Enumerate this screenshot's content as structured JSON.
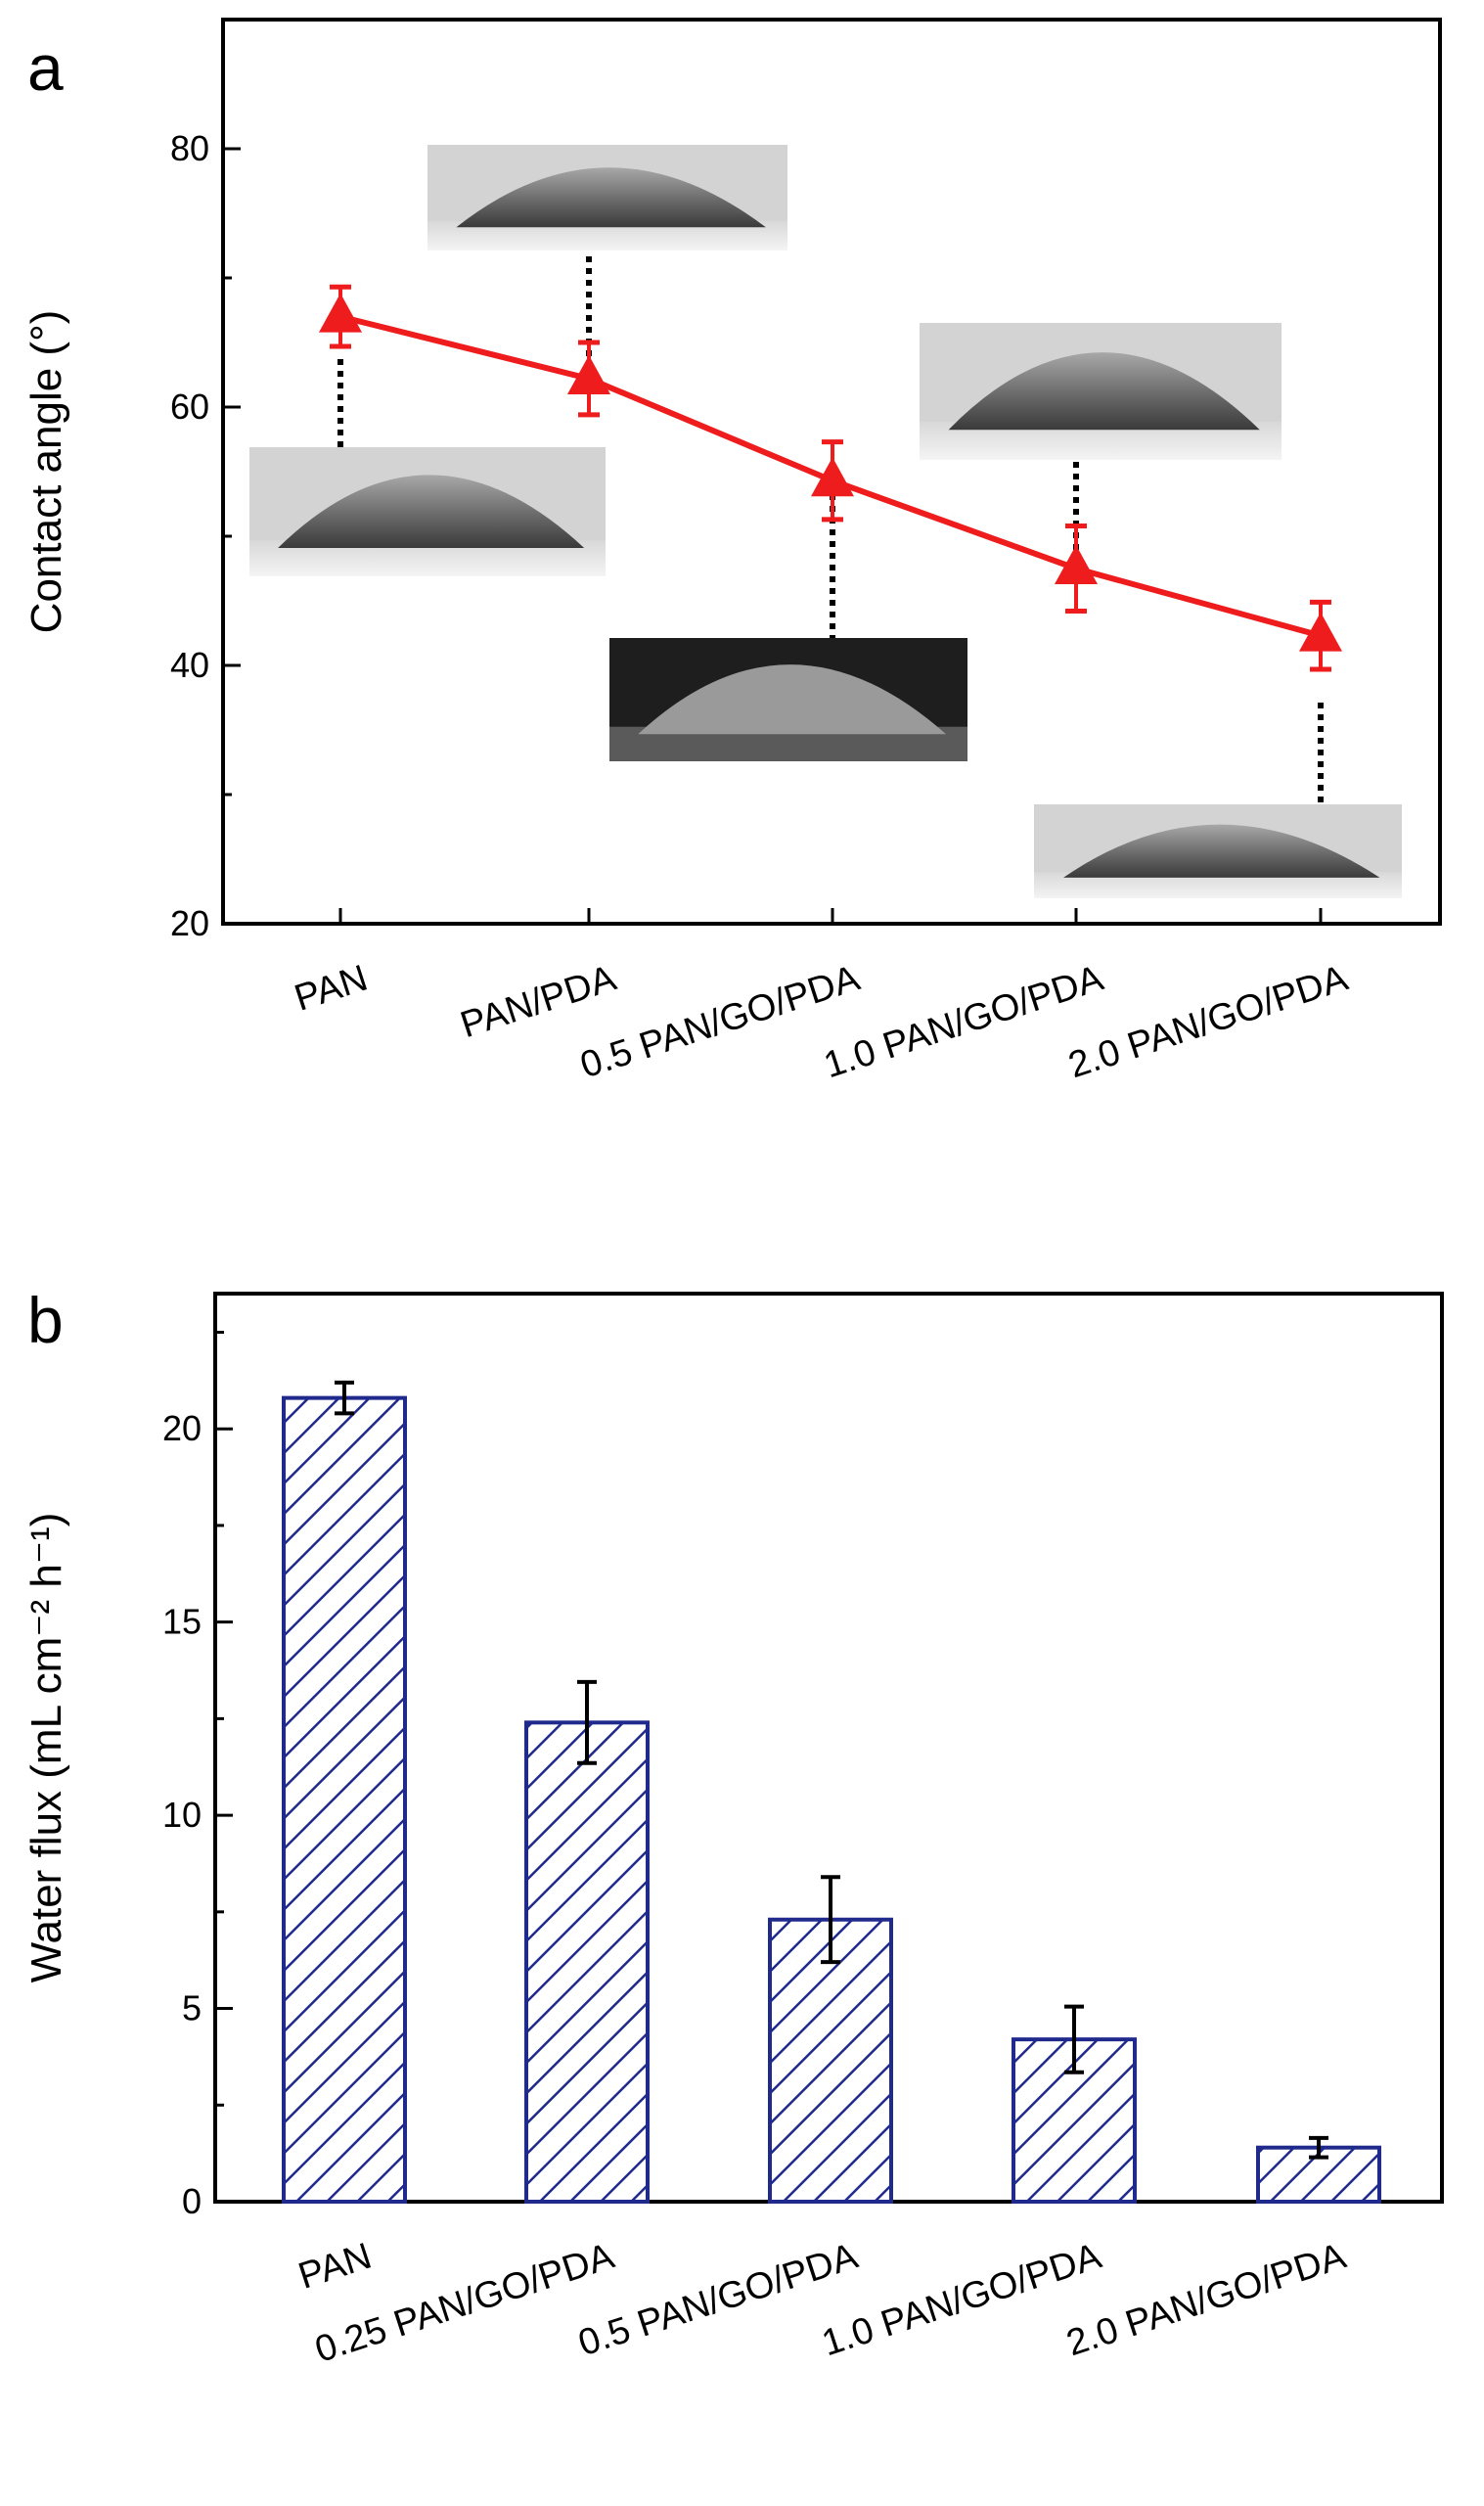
{
  "chart_data": [
    {
      "panel": "a",
      "type": "line",
      "ylabel": "Contact angle (°)",
      "ylim": [
        20,
        90
      ],
      "yticks": [
        20,
        40,
        60,
        80
      ],
      "categories": [
        "PAN",
        "PAN/PDA",
        "0.5 PAN/GO/PDA",
        "1.0 PAN/GO/PDA",
        "2.0 PAN/GO/PDA"
      ],
      "series": [
        {
          "name": "Contact angle",
          "color": "#ee1c1c",
          "marker": "triangle",
          "values": [
            67.0,
            62.2,
            54.3,
            47.5,
            42.3
          ],
          "error": [
            2.3,
            2.8,
            3.0,
            3.3,
            2.6
          ]
        }
      ],
      "annotations": [
        "water droplet image above PAN/PDA",
        "water droplet image below PAN",
        "water droplet image below 0.5 PAN/GO/PDA",
        "water droplet image above 1.0 PAN/GO/PDA",
        "water droplet image below 2.0 PAN/GO/PDA"
      ]
    },
    {
      "panel": "b",
      "type": "bar",
      "ylabel": "Water flux (mL cm⁻² h⁻¹)",
      "ylim": [
        0,
        23.5
      ],
      "yticks": [
        0,
        5,
        10,
        15,
        20
      ],
      "categories": [
        "PAN",
        "0.25 PAN/GO/PDA",
        "0.5 PAN/GO/PDA",
        "1.0 PAN/GO/PDA",
        "2.0 PAN/GO/PDA"
      ],
      "series": [
        {
          "name": "Water flux",
          "color": "#1f2a8c",
          "pattern": "diagonal-hatch",
          "values": [
            20.8,
            12.4,
            7.3,
            4.2,
            1.4
          ],
          "error": [
            0.4,
            1.05,
            1.1,
            0.85,
            0.25
          ]
        }
      ]
    }
  ]
}
